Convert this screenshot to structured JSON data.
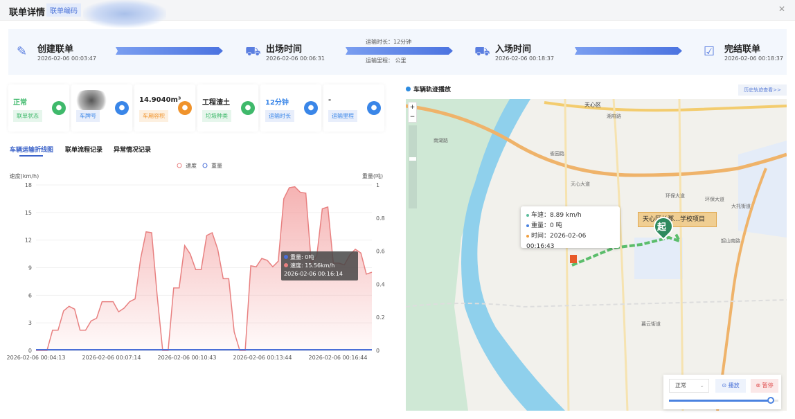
{
  "header": {
    "title": "联单详情",
    "code_label": "联单编码"
  },
  "steps": [
    {
      "name": "创建联单",
      "time": "2026-02-06 00:03:47",
      "icon": "edit-document-icon"
    },
    {
      "name": "出场时间",
      "time": "2026-02-06 00:06:31",
      "icon": "truck-clock-icon"
    },
    {
      "name": "入场时间",
      "time": "2026-02-06 00:18:37",
      "icon": "truck-enter-icon"
    },
    {
      "name": "完结联单",
      "time": "2026-02-06 00:18:37",
      "icon": "check-document-icon"
    }
  ],
  "transit": {
    "duration": "运输时长：12分钟",
    "distance": "运输里程：  公里"
  },
  "cards": [
    {
      "value": "正常",
      "label": "联单状态",
      "color": "#3fb96b",
      "icon": "check-circle-icon"
    },
    {
      "value": "",
      "label": "车牌号",
      "color": "#3a86e8",
      "icon": "truck-icon"
    },
    {
      "value": "14.9040m³",
      "label": "车厢容积",
      "color": "#f0932b",
      "icon": "box-icon"
    },
    {
      "value": "工程渣土",
      "label": "垃圾种类",
      "color": "#3fb96b",
      "icon": "mountain-icon"
    },
    {
      "value": "12分钟",
      "label": "运输时长",
      "color": "#3a86e8",
      "icon": "clock-icon"
    },
    {
      "value": "-",
      "label": "运输里程",
      "color": "#3a86e8",
      "icon": "gauge-icon"
    }
  ],
  "tabs": [
    "车辆运输折线图",
    "联单流程记录",
    "异常情况记录"
  ],
  "chart_data": {
    "type": "line",
    "legend": [
      "速度",
      "重量"
    ],
    "legend_position": "top",
    "ylabel_left": "速度(km/h)",
    "ylabel_right": "重量(吨)",
    "ylim_left": [
      0,
      18
    ],
    "yticks_left": [
      0,
      3,
      6,
      9,
      12,
      15,
      18
    ],
    "ylim_right": [
      0,
      1
    ],
    "yticks_right": [
      "0",
      "0.2",
      "0.4",
      "0.6",
      "0.8",
      "1"
    ],
    "x_tick_labels": [
      "2026-02-06 00:04:13",
      "2026-02-06 00:07:14",
      "2026-02-06 00:10:43",
      "2026-02-06 00:13:44",
      "2026-02-06 00:16:44"
    ],
    "series": [
      {
        "name": "速度",
        "color": "#e88080",
        "values": [
          0,
          0,
          0,
          2.2,
          2.2,
          4.3,
          4.8,
          4.5,
          2.2,
          2.2,
          3.2,
          3.5,
          5.3,
          5.3,
          5.3,
          4.2,
          4.6,
          5.3,
          5.6,
          10,
          12.9,
          12.8,
          6,
          0,
          0,
          6.8,
          6.8,
          11.4,
          10.5,
          8.8,
          8.8,
          12.5,
          12.8,
          11,
          7.8,
          7.8,
          2,
          0,
          0,
          9.2,
          9.1,
          10,
          9.8,
          9.1,
          9.7,
          16.5,
          17.7,
          17.8,
          17.2,
          17.1,
          9.5,
          10.3,
          15.4,
          15.6,
          9.5,
          9.5,
          9.3,
          10.4,
          11,
          10.6,
          8.3,
          8.5
        ]
      },
      {
        "name": "重量",
        "color": "#4a6fd8",
        "values": "all 0"
      }
    ],
    "tooltip": {
      "weight": "重量: 0吨",
      "speed": "速度: 15.56km/h",
      "time": "2026-02-06 00:16:14"
    }
  },
  "map_panel": {
    "title": "车辆轨迹播放",
    "history_button": "历史轨迹查看>>",
    "zoom_in": "+",
    "zoom_out": "−",
    "labels": [
      "天心区",
      "雀园路",
      "环保大道",
      "环保大道",
      "天心大道",
      "大托街道",
      "暮云街道",
      "韶山南路",
      "湘府路",
      "南湖路"
    ],
    "project_label": "天心区长郡…学校项目",
    "start_marker": "起",
    "tooltip": {
      "speed": "车速：8.89 km/h",
      "weight": "重量：0 吨",
      "time": "时间：2026-02-06 00:16:43"
    },
    "speed_select": "正常",
    "play": "播放",
    "pause": "暂停",
    "progress": 0.93
  }
}
